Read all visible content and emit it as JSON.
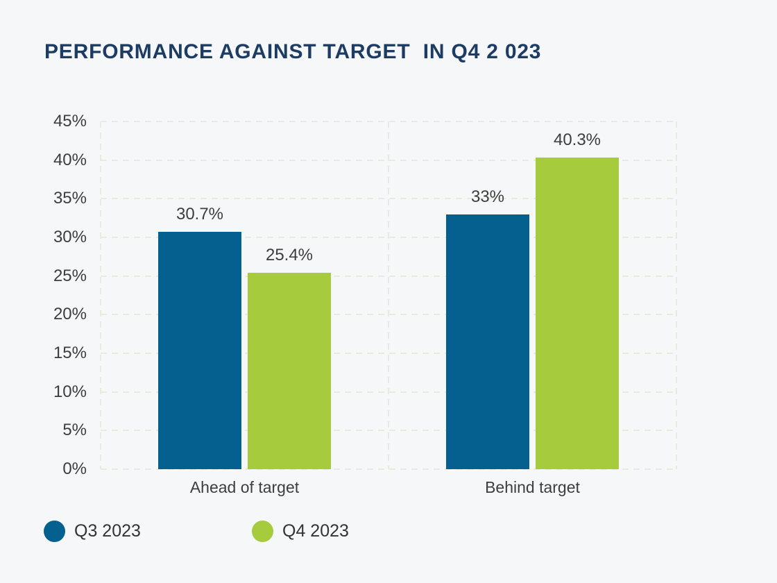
{
  "title": {
    "text": "PERFORMANCE AGAINST TARGET  IN Q4 2 023"
  },
  "palette": {
    "background": "#f6f7f9",
    "title_color": "#1d3c63",
    "text_color": "#3d3d3d",
    "legend_text_color": "#333333",
    "gridline_color": "#e9ebdc"
  },
  "chart_data": {
    "type": "bar",
    "title": "PERFORMANCE AGAINST TARGET  IN Q4 2 023",
    "categories": [
      "Ahead of target",
      "Behind target"
    ],
    "series": [
      {
        "name": "Q3 2023",
        "color": "#04618f",
        "values": [
          30.7,
          33
        ]
      },
      {
        "name": "Q4 2023",
        "color": "#a6cb3d",
        "values": [
          25.4,
          40.3
        ]
      }
    ],
    "value_labels": [
      [
        "30.7%",
        "33%"
      ],
      [
        "25.4%",
        "40.3%"
      ]
    ],
    "xlabel": "",
    "ylabel": "",
    "ylim": [
      0,
      45
    ],
    "ytick_step": 5,
    "ytick_labels": [
      "0%",
      "5%",
      "10%",
      "15%",
      "20%",
      "25%",
      "30%",
      "35%",
      "40%",
      "45%"
    ],
    "grid": "dashed",
    "grid_vertical_dividers": true,
    "legend_position": "bottom-left"
  }
}
